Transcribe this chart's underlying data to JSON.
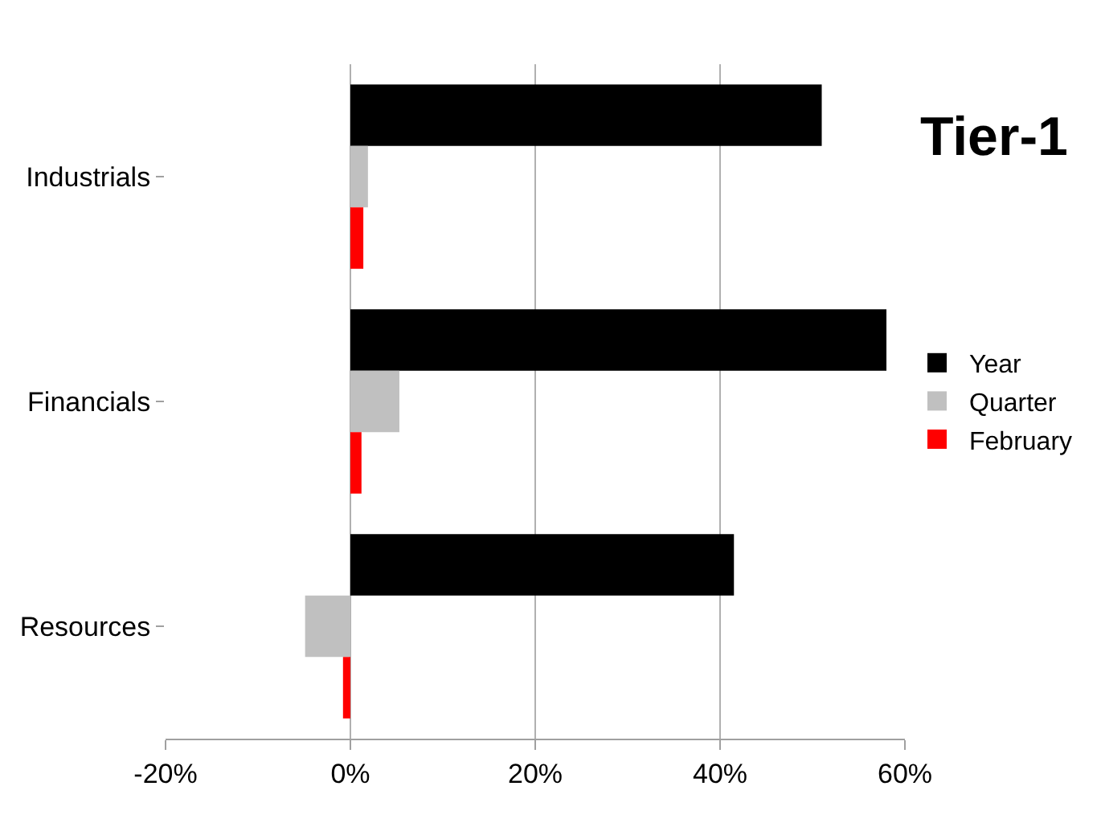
{
  "chart_data": {
    "type": "bar",
    "orientation": "horizontal",
    "title": "Tier-1",
    "categories": [
      "Industrials",
      "Financials",
      "Resources"
    ],
    "series": [
      {
        "name": "Year",
        "color": "#000000",
        "values": [
          51.0,
          58.0,
          41.5
        ]
      },
      {
        "name": "Quarter",
        "color": "#c0c0c0",
        "values": [
          1.9,
          5.3,
          -4.9
        ]
      },
      {
        "name": "February",
        "color": "#ff0000",
        "values": [
          1.4,
          1.2,
          -0.8
        ]
      }
    ],
    "xlim": [
      -20,
      60
    ],
    "xticks": [
      {
        "value": -20,
        "label": "-20%"
      },
      {
        "value": 0,
        "label": "0%"
      },
      {
        "value": 20,
        "label": "20%"
      },
      {
        "value": 40,
        "label": "40%"
      },
      {
        "value": 60,
        "label": "60%"
      }
    ],
    "grid": "x",
    "legend": "right"
  }
}
